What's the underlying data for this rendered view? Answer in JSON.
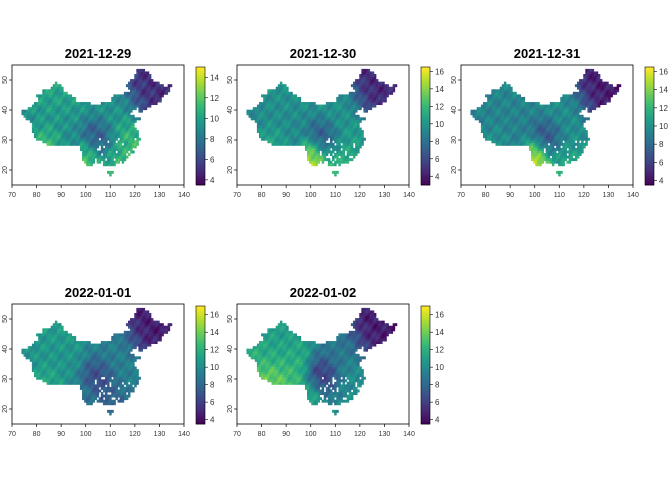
{
  "figure": {
    "layout": "2x3 grid of raster map panels",
    "background": "#ffffff"
  },
  "chart_data": [
    {
      "type": "heatmap",
      "title": "2021-12-29",
      "xlim": [
        70,
        140
      ],
      "ylim": [
        15,
        55
      ],
      "x_ticks": [
        70,
        80,
        90,
        100,
        110,
        120,
        130,
        140
      ],
      "y_ticks": [
        20,
        30,
        40,
        50
      ],
      "colorbar": {
        "range": [
          3.5,
          15
        ],
        "ticks": [
          4,
          6,
          8,
          10,
          12,
          14
        ]
      },
      "palette": [
        "#440154",
        "#3b528b",
        "#21908c",
        "#5ec962",
        "#fde725"
      ],
      "value_field": {
        "west_plateau": 8.5,
        "tibet_south": 13.5,
        "northwest": 10.5,
        "north_plain": 9.5,
        "northeast": 5.0,
        "sichuan": 6.0,
        "yunnan": 12.0,
        "south": 11.0,
        "east": 11.5
      }
    },
    {
      "type": "heatmap",
      "title": "2021-12-30",
      "xlim": [
        70,
        140
      ],
      "ylim": [
        15,
        55
      ],
      "x_ticks": [
        70,
        80,
        90,
        100,
        110,
        120,
        130,
        140
      ],
      "y_ticks": [
        20,
        30,
        40,
        50
      ],
      "colorbar": {
        "range": [
          3,
          16.5
        ],
        "ticks": [
          4,
          6,
          8,
          10,
          12,
          14,
          16
        ]
      },
      "palette": [
        "#440154",
        "#3b528b",
        "#21908c",
        "#5ec962",
        "#fde725"
      ],
      "value_field": {
        "west_plateau": 9.0,
        "tibet_south": 12.5,
        "northwest": 10.0,
        "north_plain": 10.0,
        "northeast": 4.5,
        "sichuan": 6.0,
        "yunnan": 15.5,
        "south": 12.0,
        "east": 10.5
      }
    },
    {
      "type": "heatmap",
      "title": "2021-12-31",
      "xlim": [
        70,
        140
      ],
      "ylim": [
        15,
        55
      ],
      "x_ticks": [
        70,
        80,
        90,
        100,
        110,
        120,
        130,
        140
      ],
      "y_ticks": [
        20,
        30,
        40,
        50
      ],
      "colorbar": {
        "range": [
          3.5,
          16.5
        ],
        "ticks": [
          4,
          6,
          8,
          10,
          12,
          14,
          16
        ]
      },
      "palette": [
        "#440154",
        "#3b528b",
        "#21908c",
        "#5ec962",
        "#fde725"
      ],
      "value_field": {
        "west_plateau": 9.0,
        "tibet_south": 11.0,
        "northwest": 9.5,
        "north_plain": 10.0,
        "northeast": 4.5,
        "sichuan": 6.0,
        "yunnan": 16.0,
        "south": 11.5,
        "east": 10.0
      }
    },
    {
      "type": "heatmap",
      "title": "2022-01-01",
      "xlim": [
        70,
        140
      ],
      "ylim": [
        15,
        55
      ],
      "x_ticks": [
        70,
        80,
        90,
        100,
        110,
        120,
        130,
        140
      ],
      "y_ticks": [
        20,
        30,
        40,
        50
      ],
      "colorbar": {
        "range": [
          3.5,
          17
        ],
        "ticks": [
          4,
          6,
          8,
          10,
          12,
          14,
          16
        ]
      },
      "palette": [
        "#440154",
        "#3b528b",
        "#21908c",
        "#5ec962",
        "#fde725"
      ],
      "value_field": {
        "west_plateau": 10.0,
        "tibet_south": 13.0,
        "northwest": 11.0,
        "north_plain": 9.5,
        "northeast": 4.5,
        "sichuan": 6.0,
        "yunnan": 9.0,
        "south": 8.0,
        "east": 9.5
      }
    },
    {
      "type": "heatmap",
      "title": "2022-01-02",
      "xlim": [
        70,
        140
      ],
      "ylim": [
        15,
        55
      ],
      "x_ticks": [
        70,
        80,
        90,
        100,
        110,
        120,
        130,
        140
      ],
      "y_ticks": [
        20,
        30,
        40,
        50
      ],
      "colorbar": {
        "range": [
          3.5,
          17
        ],
        "ticks": [
          4,
          6,
          8,
          10,
          12,
          14,
          16
        ]
      },
      "palette": [
        "#440154",
        "#3b528b",
        "#21908c",
        "#5ec962",
        "#fde725"
      ],
      "value_field": {
        "west_plateau": 13.0,
        "tibet_south": 15.0,
        "northwest": 10.5,
        "north_plain": 9.0,
        "northeast": 4.5,
        "sichuan": 5.0,
        "yunnan": 12.0,
        "south": 10.0,
        "east": 10.5
      }
    }
  ]
}
